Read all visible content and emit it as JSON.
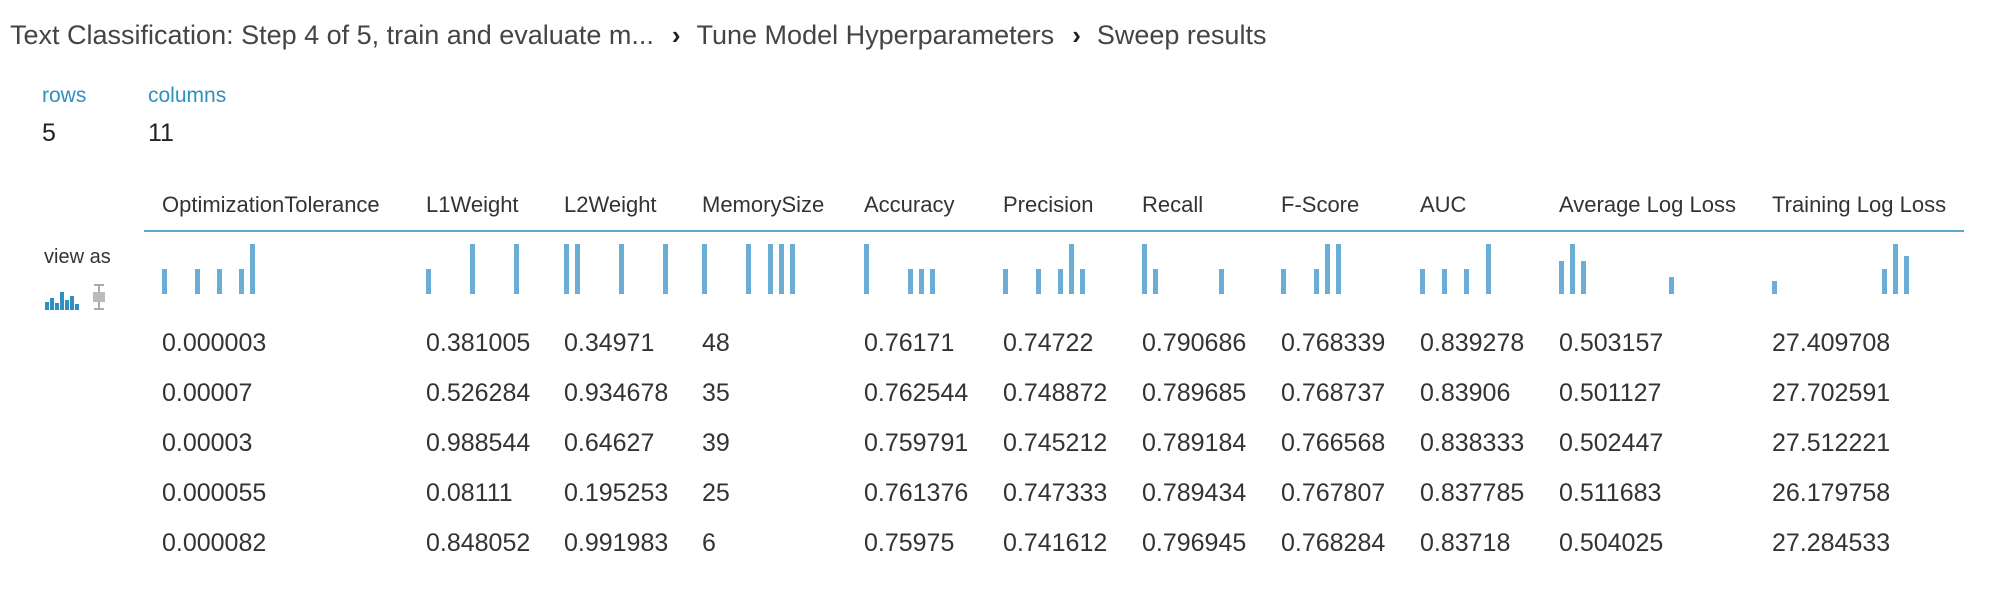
{
  "breadcrumb": [
    "Text Classification: Step 4 of 5, train and evaluate m...",
    "Tune Model Hyperparameters",
    "Sweep results"
  ],
  "breadcrumb_separator": "›",
  "stats": {
    "rows_label": "rows",
    "rows_value": "5",
    "columns_label": "columns",
    "columns_value": "11"
  },
  "view_as": {
    "label": "view as",
    "icons": [
      "histogram-icon",
      "boxplot-icon"
    ]
  },
  "colors": {
    "accent": "#2f8fc0",
    "histogram_bar": "#6aaed6",
    "header_rule": "#5ba6cc"
  },
  "table": {
    "columns": [
      "OptimizationTolerance",
      "L1Weight",
      "L2Weight",
      "MemorySize",
      "Accuracy",
      "Precision",
      "Recall",
      "F-Score",
      "AUC",
      "Average Log Loss",
      "Training Log Loss"
    ],
    "rows": [
      [
        "0.000003",
        "0.381005",
        "0.34971",
        "48",
        "0.76171",
        "0.74722",
        "0.790686",
        "0.768339",
        "0.839278",
        "0.503157",
        "27.409708"
      ],
      [
        "0.00007",
        "0.526284",
        "0.934678",
        "35",
        "0.762544",
        "0.748872",
        "0.789685",
        "0.768737",
        "0.83906",
        "0.501127",
        "27.702591"
      ],
      [
        "0.00003",
        "0.988544",
        "0.64627",
        "39",
        "0.759791",
        "0.745212",
        "0.789184",
        "0.766568",
        "0.838333",
        "0.502447",
        "27.512221"
      ],
      [
        "0.000055",
        "0.08111",
        "0.195253",
        "25",
        "0.761376",
        "0.747333",
        "0.789434",
        "0.767807",
        "0.837785",
        "0.511683",
        "26.179758"
      ],
      [
        "0.000082",
        "0.848052",
        "0.991983",
        "6",
        "0.75975",
        "0.741612",
        "0.796945",
        "0.768284",
        "0.83718",
        "0.504025",
        "27.284533"
      ]
    ],
    "histograms": [
      [
        1,
        0,
        0,
        1,
        0,
        1,
        0,
        1,
        2
      ],
      [
        1,
        0,
        0,
        0,
        2,
        0,
        0,
        0,
        2
      ],
      [
        1,
        1,
        0,
        0,
        0,
        1,
        0,
        0,
        0,
        1
      ],
      [
        1,
        0,
        0,
        0,
        1,
        0,
        1,
        1,
        1
      ],
      [
        2,
        0,
        0,
        0,
        1,
        1,
        1
      ],
      [
        1,
        0,
        0,
        1,
        0,
        1,
        2,
        1
      ],
      [
        2,
        1,
        0,
        0,
        0,
        0,
        0,
        1
      ],
      [
        1,
        0,
        0,
        1,
        2,
        2
      ],
      [
        1,
        0,
        1,
        0,
        1,
        0,
        2
      ],
      [
        2,
        3,
        2,
        0,
        0,
        0,
        0,
        0,
        0,
        0,
        1
      ],
      [
        1,
        0,
        0,
        0,
        0,
        0,
        0,
        0,
        0,
        0,
        2,
        4,
        3
      ]
    ]
  }
}
